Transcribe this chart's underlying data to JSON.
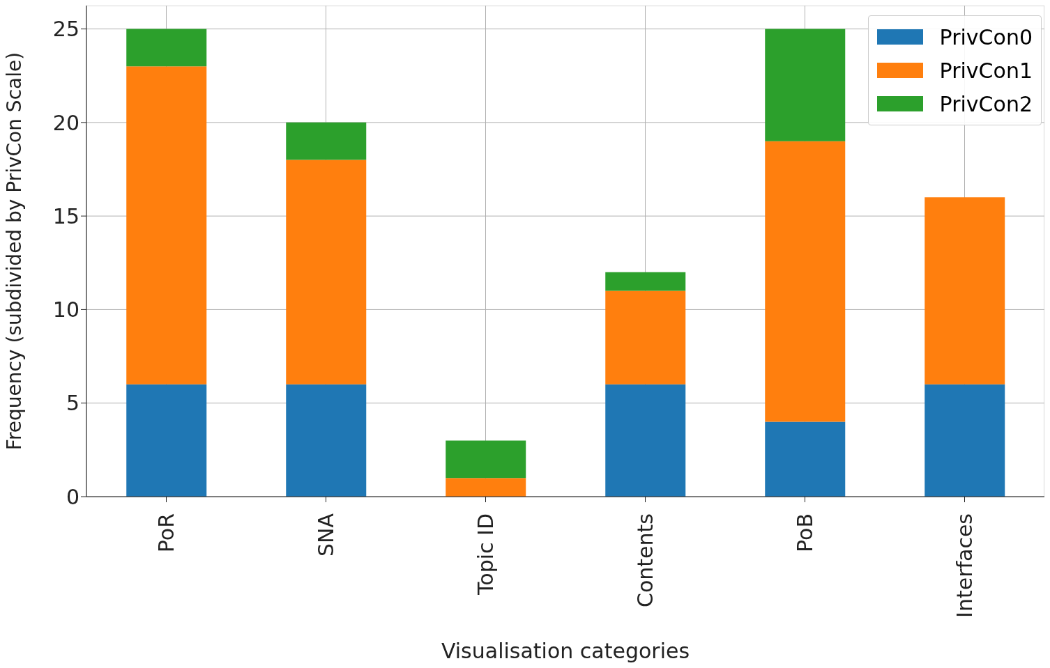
{
  "chart_data": {
    "type": "bar",
    "stacked": true,
    "xlabel": "Visualisation categories",
    "ylabel": "Frequency (subdivided by PrivCon Scale)",
    "categories": [
      "PoR",
      "SNA",
      "Topic ID",
      "Contents",
      "PoB",
      "Interfaces"
    ],
    "series": [
      {
        "name": "PrivCon0",
        "color": "#1f77b4",
        "values": [
          6,
          6,
          0,
          6,
          4,
          6
        ]
      },
      {
        "name": "PrivCon1",
        "color": "#ff7f0e",
        "values": [
          17,
          12,
          1,
          5,
          15,
          10
        ]
      },
      {
        "name": "PrivCon2",
        "color": "#2ca02c",
        "values": [
          2,
          2,
          2,
          1,
          6,
          0
        ]
      }
    ],
    "ylim": [
      0,
      26.25
    ],
    "yticks": [
      0,
      5,
      10,
      15,
      20,
      25
    ],
    "grid": true,
    "legend": "top right"
  }
}
